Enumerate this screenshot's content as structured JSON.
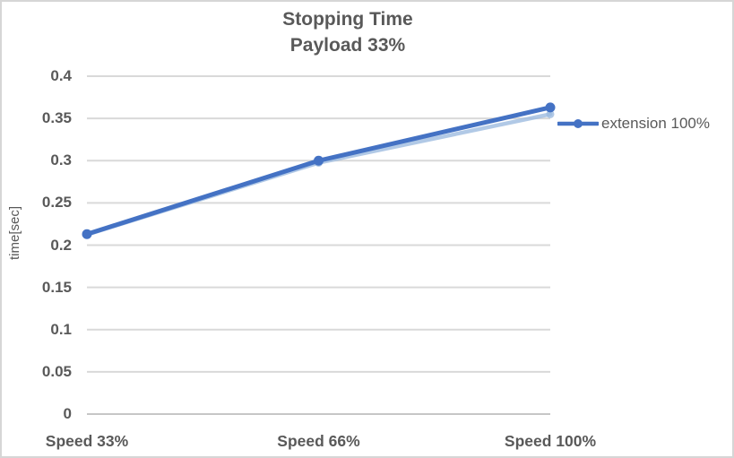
{
  "window": {
    "background": "#FFFFFF",
    "border_color": "#D6D6D6"
  },
  "chart_data": {
    "type": "line",
    "title": "Stopping Time",
    "subtitle": "Payload 33%",
    "categories": [
      "Speed 33%",
      "Speed 66%",
      "Speed 100%"
    ],
    "series": [
      {
        "name": "extension 100%",
        "values": [
          0.213,
          0.3,
          0.363
        ],
        "color": "#4472C4",
        "marker": "circle"
      }
    ],
    "shadow_line": {
      "values": [
        0.2125,
        0.2975,
        0.355
      ],
      "color": "#9DBBE0"
    },
    "xlabel": "",
    "ylabel": "time[sec]",
    "ylim": [
      0,
      0.4
    ],
    "ytick_step": 0.05,
    "yticks": [
      "0",
      "0.05",
      "0.1",
      "0.15",
      "0.2",
      "0.25",
      "0.3",
      "0.35",
      "0.4"
    ],
    "grid": true,
    "legend_position": "right",
    "colors": {
      "text": "#595959",
      "grid": "#D9D9D9",
      "axis_line": "#C6C6C6"
    }
  }
}
